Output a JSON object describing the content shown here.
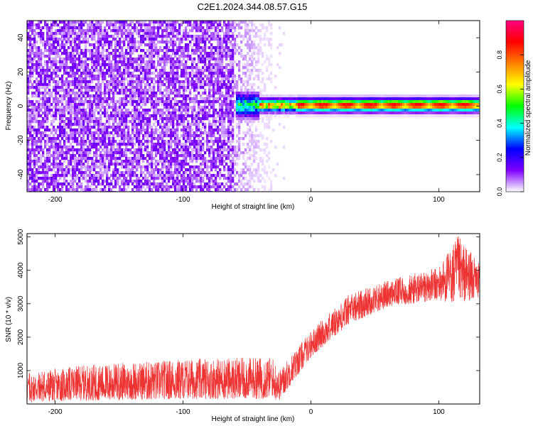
{
  "title": "C2E1.2024.344.08.57.G15",
  "chart_data": [
    {
      "type": "heatmap",
      "xlabel": "Height of straight line (km)",
      "ylabel": "Frequency (Hz)",
      "xlim": [
        -222,
        132
      ],
      "ylim": [
        -50,
        50
      ],
      "xticks": [
        -200,
        -100,
        0,
        100
      ],
      "yticks": [
        -40,
        -20,
        0,
        20,
        40
      ],
      "colorbar": {
        "label": "Normalized spectral amplitude",
        "range": [
          0,
          1
        ],
        "ticks": [
          0.0,
          0.2,
          0.4,
          0.6,
          0.8
        ],
        "tick_labels": [
          "0.0",
          "0.2",
          "0.4",
          "0.6",
          "0.8"
        ],
        "colors": [
          "#ffffff",
          "#7f00ff",
          "#0000ff",
          "#00ffff",
          "#00ff00",
          "#ffff00",
          "#ff8000",
          "#ff0000",
          "#ff0080"
        ]
      },
      "noise_region_x": [
        -222,
        -30
      ],
      "signal_band": {
        "x_start": -58,
        "x_end": 132,
        "center_frequency": 0.5,
        "peak_amplitude": 0.95
      }
    },
    {
      "type": "line",
      "xlabel": "Height of straight line (km)",
      "ylabel": "SNR (10 * v/v)",
      "xlim": [
        -222,
        132
      ],
      "ylim": [
        0,
        5100
      ],
      "xticks": [
        -200,
        -100,
        0,
        100
      ],
      "yticks": [
        1000,
        2000,
        3000,
        4000,
        5000
      ],
      "color": "#ee3333",
      "trend": [
        {
          "x": -222,
          "y_low": 50,
          "y_high": 950
        },
        {
          "x": -180,
          "y_low": 100,
          "y_high": 1150
        },
        {
          "x": -100,
          "y_low": 150,
          "y_high": 1350
        },
        {
          "x": -30,
          "y_low": 150,
          "y_high": 1400
        },
        {
          "x": -25,
          "y_low": 100,
          "y_high": 1000
        },
        {
          "x": 0,
          "y_low": 1400,
          "y_high": 2200
        },
        {
          "x": 30,
          "y_low": 2400,
          "y_high": 3300
        },
        {
          "x": 60,
          "y_low": 2900,
          "y_high": 3700
        },
        {
          "x": 100,
          "y_low": 3100,
          "y_high": 4100
        },
        {
          "x": 115,
          "y_low": 3000,
          "y_high": 5050
        },
        {
          "x": 132,
          "y_low": 3200,
          "y_high": 4200
        }
      ]
    }
  ]
}
